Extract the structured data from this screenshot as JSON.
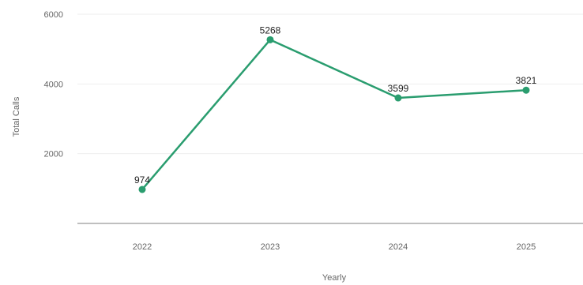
{
  "chart_data": {
    "type": "line",
    "title": "",
    "xlabel": "Yearly",
    "ylabel": "Total Calls",
    "categories": [
      "2022",
      "2023",
      "2024",
      "2025"
    ],
    "series": [
      {
        "values": [
          974,
          5268,
          3599,
          3821
        ],
        "color": "#2a9d6f"
      }
    ],
    "y_ticks": [
      2000,
      4000,
      6000
    ],
    "ylim": [
      0,
      6000
    ],
    "data_labels": [
      "974",
      "5268",
      "3599",
      "3821"
    ],
    "grid": true,
    "legend": "none"
  }
}
